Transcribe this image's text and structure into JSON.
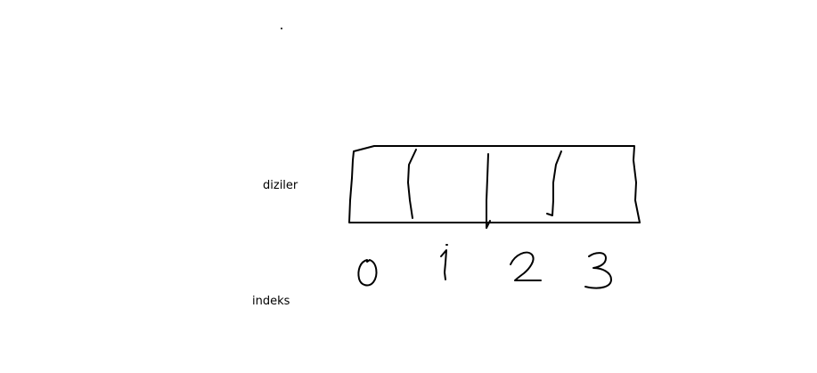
{
  "labels": {
    "array": "diziler",
    "index": "indeks"
  },
  "indices": [
    "0",
    "1",
    "2",
    "3"
  ],
  "colors": {
    "background": "#ffffff",
    "ink": "#000000"
  }
}
